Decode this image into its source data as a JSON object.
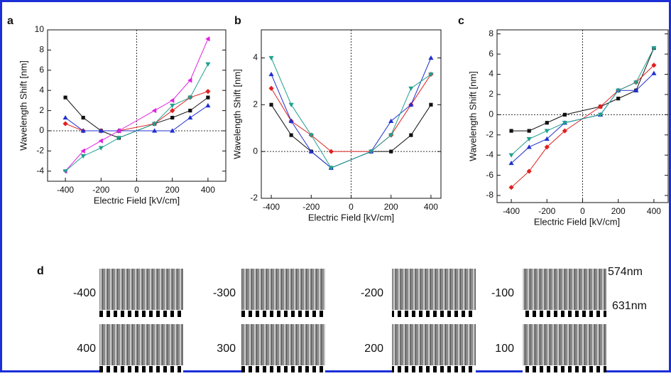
{
  "chart_data": [
    {
      "type": "line",
      "panel_label": "a",
      "x_label": "Electric Field [kV/cm]",
      "y_label": "Wavelength Shift [nm]",
      "x": [
        -400,
        -300,
        -200,
        -100,
        100,
        200,
        300,
        400
      ],
      "xlim": [
        -500,
        500
      ],
      "xticks": [
        -400,
        -200,
        0,
        200,
        400
      ],
      "ylim": [
        -5,
        10
      ],
      "yticks": [
        -4,
        -2,
        0,
        2,
        4,
        6,
        8,
        10
      ],
      "zero_lines": true,
      "series": [
        {
          "color": "#111111",
          "marker": "square",
          "values": [
            3.3,
            1.3,
            0,
            -0.7,
            0.7,
            1.3,
            2,
            3.3
          ]
        },
        {
          "color": "#e02020",
          "marker": "diamond",
          "values": [
            0.7,
            0,
            0,
            0,
            0.7,
            2,
            3.3,
            3.9
          ]
        },
        {
          "color": "#2030d0",
          "marker": "triangle-up",
          "values": [
            1.3,
            0,
            0,
            0,
            0,
            0,
            1.3,
            2.5
          ]
        },
        {
          "color": "#e020e0",
          "marker": "triangle-left",
          "values": [
            -4,
            -2,
            -1,
            0,
            2,
            3,
            5,
            9.1
          ]
        },
        {
          "color": "#20a090",
          "marker": "triangle-down",
          "values": [
            -4,
            -2.5,
            -1.7,
            -0.7,
            0.7,
            2.5,
            3.3,
            6.6
          ]
        }
      ]
    },
    {
      "type": "line",
      "panel_label": "b",
      "x_label": "Electric Field [kV/cm]",
      "y_label": "Wavelength Shift [nm]",
      "x": [
        -400,
        -300,
        -200,
        -100,
        100,
        200,
        300,
        400
      ],
      "xlim": [
        -450,
        450
      ],
      "xticks": [
        -400,
        -200,
        0,
        200,
        400
      ],
      "ylim": [
        -2,
        5.2
      ],
      "yticks": [
        -2,
        0,
        2,
        4
      ],
      "zero_lines": true,
      "series": [
        {
          "color": "#111111",
          "marker": "square",
          "values": [
            2,
            0.7,
            0,
            -0.7,
            0,
            0,
            0.7,
            2
          ]
        },
        {
          "color": "#e02020",
          "marker": "diamond",
          "values": [
            2.7,
            1.3,
            0.7,
            0,
            0,
            0.7,
            2,
            3.3
          ]
        },
        {
          "color": "#2030d0",
          "marker": "triangle-up",
          "values": [
            3.3,
            1.3,
            0,
            -0.7,
            0,
            1.3,
            2,
            4
          ]
        },
        {
          "color": "#20a090",
          "marker": "triangle-down",
          "values": [
            4,
            2,
            0.7,
            -0.7,
            0,
            0.7,
            2.7,
            3.3
          ]
        }
      ]
    },
    {
      "type": "line",
      "panel_label": "c",
      "x_label": "Electric Field [kV/cm]",
      "y_label": "Wavelength Shift [nm]",
      "x": [
        -400,
        -300,
        -200,
        -100,
        100,
        200,
        300,
        400
      ],
      "xlim": [
        -480,
        480
      ],
      "xticks": [
        -400,
        -200,
        0,
        200,
        400
      ],
      "ylim": [
        -8.7,
        8.4
      ],
      "yticks": [
        -8,
        -6,
        -4,
        -2,
        0,
        2,
        4,
        6,
        8
      ],
      "zero_lines": true,
      "series": [
        {
          "color": "#111111",
          "marker": "square",
          "values": [
            -1.6,
            -1.6,
            -0.8,
            0,
            0.8,
            1.6,
            2.4,
            6.6
          ]
        },
        {
          "color": "#e02020",
          "marker": "diamond",
          "values": [
            -7.2,
            -5.6,
            -3.2,
            -1.6,
            0.8,
            2.4,
            3.2,
            4.9
          ]
        },
        {
          "color": "#2030d0",
          "marker": "triangle-up",
          "values": [
            -4.8,
            -3.2,
            -2.4,
            -0.8,
            0,
            2.4,
            2.4,
            4.1
          ]
        },
        {
          "color": "#20a090",
          "marker": "triangle-down",
          "values": [
            -4,
            -2.4,
            -1.6,
            -0.8,
            0,
            2.4,
            3.2,
            6.6
          ]
        }
      ]
    }
  ],
  "panel_d": {
    "panel_label": "d",
    "fields": [
      "-400",
      "-300",
      "-200",
      "-100",
      "400",
      "300",
      "200",
      "100"
    ],
    "wavelengths": [
      "574nm",
      "631nm"
    ]
  }
}
